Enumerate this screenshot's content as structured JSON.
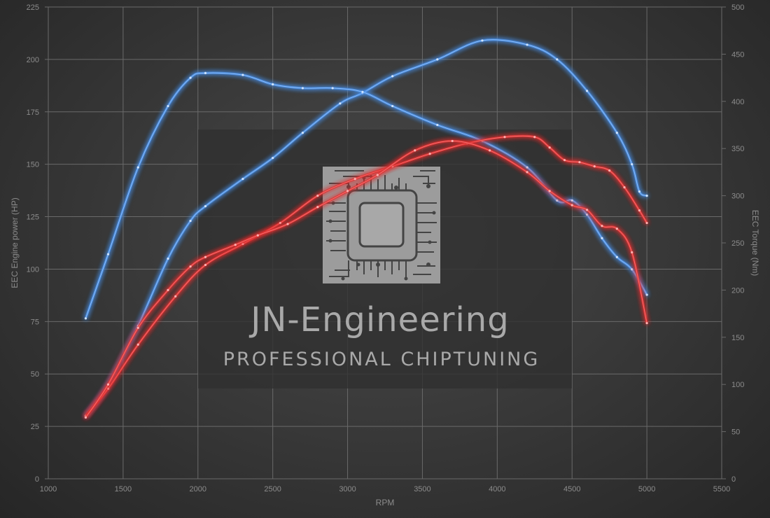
{
  "chart_data": {
    "type": "line",
    "xlabel": "RPM",
    "ylabel_left": "EEC Engine power (HP)",
    "ylabel_right": "EEC Torque (Nm)",
    "xlim": [
      1000,
      5500
    ],
    "ylim_left": [
      0,
      225
    ],
    "ylim_right": [
      0,
      500
    ],
    "x_ticks": [
      "1000",
      "1500",
      "2000",
      "2500",
      "3000",
      "3500",
      "4000",
      "4500",
      "5000",
      "5500"
    ],
    "y_left_ticks": [
      "0",
      "25",
      "50",
      "75",
      "100",
      "125",
      "150",
      "175",
      "200",
      "225"
    ],
    "y_right_ticks": [
      "0",
      "50",
      "100",
      "150",
      "200",
      "250",
      "300",
      "350",
      "400",
      "450",
      "500"
    ],
    "grid": true,
    "series": [
      {
        "axis": "left",
        "color": "#4a8fe6",
        "x": [
          1250,
          1400,
          1600,
          1800,
          1950,
          2050,
          2300,
          2500,
          2700,
          2950,
          3100,
          3300,
          3600,
          3900,
          4200,
          4400,
          4600,
          4800,
          4900,
          4950,
          5000
        ],
        "values": [
          30,
          45,
          73,
          105,
          123,
          130,
          143,
          153,
          165,
          179,
          184,
          192,
          200,
          209,
          207,
          200,
          185,
          165,
          150,
          137,
          135
        ]
      },
      {
        "axis": "right",
        "color": "#4a8fe6",
        "x": [
          1250,
          1400,
          1600,
          1800,
          1950,
          2050,
          2300,
          2500,
          2700,
          2900,
          3100,
          3300,
          3600,
          3900,
          4200,
          4400,
          4500,
          4600,
          4700,
          4800,
          4900,
          5000
        ],
        "values": [
          170,
          238,
          330,
          395,
          425,
          430,
          428,
          418,
          414,
          414,
          410,
          395,
          375,
          358,
          330,
          295,
          295,
          280,
          255,
          235,
          222,
          195
        ]
      },
      {
        "axis": "left",
        "color": "#e03030",
        "x": [
          1250,
          1400,
          1600,
          1850,
          2050,
          2300,
          2550,
          2800,
          3050,
          3300,
          3550,
          3800,
          4050,
          4250,
          4350,
          4450,
          4550,
          4650,
          4750,
          4850,
          4950,
          5000
        ],
        "values": [
          30,
          43,
          64,
          87,
          102,
          112,
          122,
          135,
          143,
          149,
          155,
          160,
          163,
          163,
          158,
          152,
          151,
          149,
          147,
          139,
          128,
          122
        ]
      },
      {
        "axis": "right",
        "color": "#e03030",
        "x": [
          1250,
          1400,
          1600,
          1800,
          1950,
          2050,
          2250,
          2400,
          2600,
          2800,
          3000,
          3200,
          3450,
          3700,
          3950,
          4200,
          4350,
          4500,
          4600,
          4700,
          4800,
          4900,
          5000
        ],
        "values": [
          65,
          100,
          160,
          200,
          225,
          235,
          248,
          258,
          270,
          288,
          305,
          322,
          348,
          358,
          348,
          325,
          305,
          290,
          285,
          268,
          265,
          240,
          165
        ]
      }
    ]
  },
  "watermark": {
    "title": "JN-Engineering",
    "subtitle": "professional chiptuning"
  },
  "colors": {
    "grid": "#6a6a6a",
    "watermark_box": "#2f2f2f",
    "chip": "#9c9c9c"
  }
}
